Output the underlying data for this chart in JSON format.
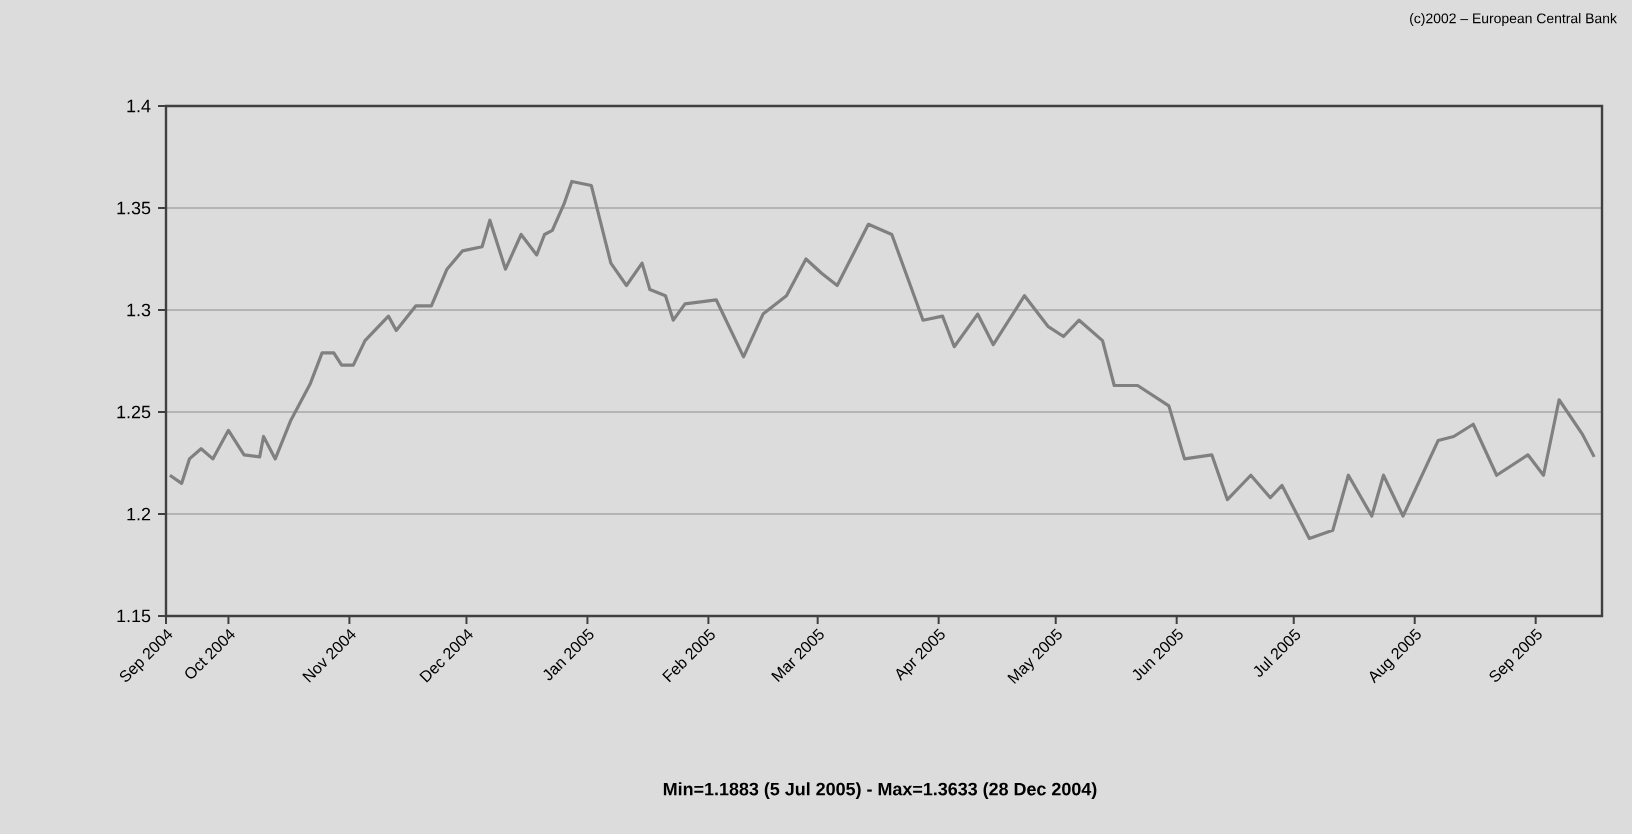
{
  "chart_data": {
    "type": "line",
    "annotations": [
      "(c)2002 – European Central Bank",
      "Min=1.1883 (5 Jul 2005) - Max=1.3633 (28 Dec 2004)"
    ],
    "x": [
      "2004-09-16",
      "2004-09-19",
      "2004-09-21",
      "2004-09-24",
      "2004-09-27",
      "2004-10-01",
      "2004-10-05",
      "2004-10-09",
      "2004-10-10",
      "2004-10-13",
      "2004-10-17",
      "2004-10-22",
      "2004-10-25",
      "2004-10-28",
      "2004-10-30",
      "2004-11-02",
      "2004-11-05",
      "2004-11-11",
      "2004-11-13",
      "2004-11-18",
      "2004-11-22",
      "2004-11-26",
      "2004-11-30",
      "2004-12-05",
      "2004-12-07",
      "2004-12-11",
      "2004-12-15",
      "2004-12-19",
      "2004-12-21",
      "2004-12-23",
      "2004-12-26",
      "2004-12-28",
      "2005-01-02",
      "2005-01-07",
      "2005-01-11",
      "2005-01-15",
      "2005-01-17",
      "2005-01-21",
      "2005-01-23",
      "2005-01-26",
      "2005-02-03",
      "2005-02-10",
      "2005-02-15",
      "2005-02-21",
      "2005-02-26",
      "2005-03-02",
      "2005-03-06",
      "2005-03-14",
      "2005-03-20",
      "2005-03-28",
      "2005-04-02",
      "2005-04-05",
      "2005-04-11",
      "2005-04-15",
      "2005-04-23",
      "2005-04-29",
      "2005-05-03",
      "2005-05-07",
      "2005-05-13",
      "2005-05-16",
      "2005-05-22",
      "2005-05-30",
      "2005-06-03",
      "2005-06-10",
      "2005-06-14",
      "2005-06-20",
      "2005-06-25",
      "2005-06-28",
      "2005-07-05",
      "2005-07-11",
      "2005-07-15",
      "2005-07-21",
      "2005-07-24",
      "2005-07-29",
      "2005-08-07",
      "2005-08-11",
      "2005-08-16",
      "2005-08-22",
      "2005-08-30",
      "2005-09-03",
      "2005-09-07",
      "2005-09-13",
      "2005-09-16"
    ],
    "series": [
      {
        "color": "#808080",
        "values": [
          1.219,
          1.215,
          1.227,
          1.232,
          1.227,
          1.241,
          1.229,
          1.228,
          1.238,
          1.227,
          1.246,
          1.264,
          1.279,
          1.279,
          1.273,
          1.273,
          1.285,
          1.297,
          1.29,
          1.302,
          1.302,
          1.32,
          1.329,
          1.331,
          1.344,
          1.32,
          1.337,
          1.327,
          1.337,
          1.339,
          1.352,
          1.363,
          1.361,
          1.323,
          1.312,
          1.323,
          1.31,
          1.307,
          1.295,
          1.303,
          1.305,
          1.277,
          1.298,
          1.307,
          1.325,
          1.318,
          1.312,
          1.342,
          1.337,
          1.295,
          1.297,
          1.282,
          1.298,
          1.283,
          1.307,
          1.292,
          1.287,
          1.295,
          1.285,
          1.263,
          1.263,
          1.253,
          1.227,
          1.229,
          1.207,
          1.219,
          1.208,
          1.214,
          1.188,
          1.192,
          1.219,
          1.199,
          1.219,
          1.199,
          1.236,
          1.238,
          1.244,
          1.219,
          1.229,
          1.219,
          1.256,
          1.239,
          1.228
        ]
      }
    ],
    "xlim": [
      "2004-09-15",
      "2005-09-18"
    ],
    "xticks": [
      {
        "value": "2004-09-15",
        "label": "Sep 2004"
      },
      {
        "value": "2004-10-01",
        "label": "Oct 2004"
      },
      {
        "value": "2004-11-01",
        "label": "Nov 2004"
      },
      {
        "value": "2004-12-01",
        "label": "Dec 2004"
      },
      {
        "value": "2005-01-01",
        "label": "Jan 2005"
      },
      {
        "value": "2005-02-01",
        "label": "Feb 2005"
      },
      {
        "value": "2005-03-01",
        "label": "Mar 2005"
      },
      {
        "value": "2005-04-01",
        "label": "Apr 2005"
      },
      {
        "value": "2005-05-01",
        "label": "May 2005"
      },
      {
        "value": "2005-06-01",
        "label": "Jun 2005"
      },
      {
        "value": "2005-07-01",
        "label": "Jul 2005"
      },
      {
        "value": "2005-08-01",
        "label": "Aug 2005"
      },
      {
        "value": "2005-09-01",
        "label": "Sep 2005"
      }
    ],
    "ylim": [
      1.15,
      1.4
    ],
    "yticks": [
      1.15,
      1.2,
      1.25,
      1.3,
      1.35,
      1.4
    ],
    "grid": "y"
  }
}
